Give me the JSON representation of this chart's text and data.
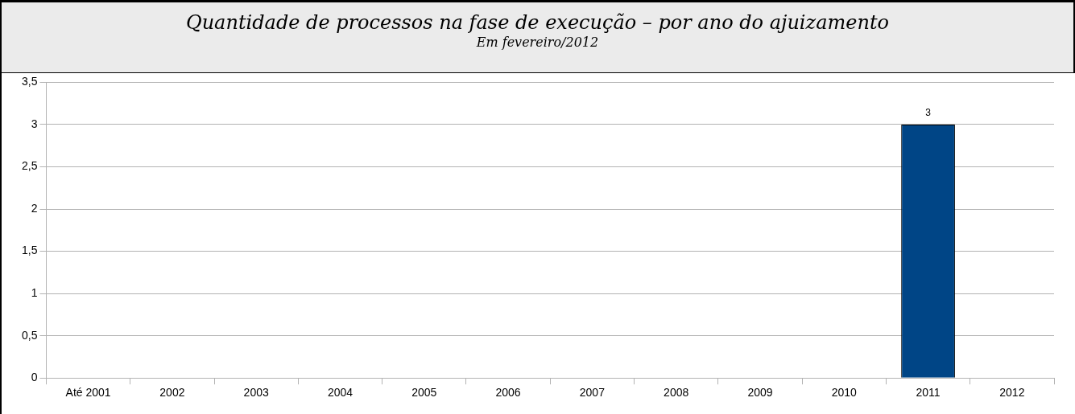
{
  "chart_data": {
    "type": "bar",
    "title": "Quantidade de processos na fase de execução – por ano do ajuizamento",
    "subtitle": "Em fevereiro/2012",
    "categories": [
      "Até 2001",
      "2002",
      "2003",
      "2004",
      "2005",
      "2006",
      "2007",
      "2008",
      "2009",
      "2010",
      "2011",
      "2012"
    ],
    "values": [
      0,
      0,
      0,
      0,
      0,
      0,
      0,
      0,
      0,
      0,
      3,
      0
    ],
    "value_labels": [
      null,
      null,
      null,
      null,
      null,
      null,
      null,
      null,
      null,
      null,
      "3",
      null
    ],
    "color": "#004586",
    "ylim": [
      0,
      3.5
    ],
    "yticks": [
      0,
      {
        "value": 0.5,
        "label": "0,5"
      },
      1,
      {
        "value": 1.5,
        "label": "1,5"
      },
      2,
      {
        "value": 2.5,
        "label": "2,5"
      },
      3,
      {
        "value": 3.5,
        "label": "3,5"
      }
    ],
    "grid": "y",
    "legend": false
  }
}
